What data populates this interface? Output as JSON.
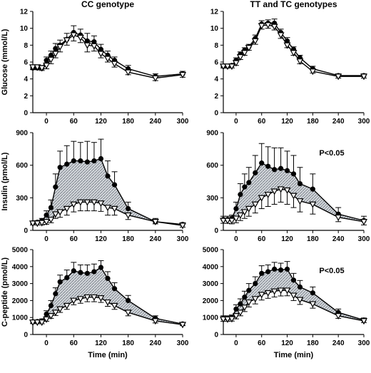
{
  "chart_data": [
    {
      "type": "line",
      "title": "CC genotype",
      "ylabel": "Glucose (mmol/L)",
      "xlabel": "",
      "ylim": [
        0,
        12
      ],
      "yticks": [
        0,
        2,
        4,
        6,
        8,
        10,
        12
      ],
      "xticks": [
        0,
        60,
        120,
        180,
        240,
        300
      ],
      "xlim": [
        -30,
        300
      ],
      "p_value": "",
      "shaded": false,
      "x": [
        -30,
        -20,
        -10,
        0,
        10,
        20,
        30,
        45,
        60,
        75,
        90,
        105,
        120,
        135,
        150,
        180,
        240,
        300
      ],
      "series": [
        {
          "marker": "circle",
          "values": [
            5.3,
            5.3,
            5.3,
            6.2,
            6.8,
            7.6,
            8.0,
            8.7,
            9.5,
            9.2,
            8.5,
            8.4,
            7.5,
            6.8,
            6.2,
            5.2,
            4.3,
            4.6
          ],
          "err": [
            0.3,
            0.3,
            0.3,
            0.4,
            0.5,
            0.6,
            0.6,
            0.7,
            0.8,
            0.7,
            0.9,
            0.7,
            0.6,
            0.5,
            0.4,
            0.4,
            0.3,
            0.3
          ]
        },
        {
          "marker": "triangle",
          "values": [
            5.4,
            5.4,
            5.3,
            5.6,
            6.3,
            7.0,
            7.8,
            8.6,
            9.2,
            8.9,
            8.0,
            7.9,
            7.0,
            6.4,
            5.8,
            4.8,
            4.1,
            4.5
          ],
          "err": [
            0.3,
            0.3,
            0.3,
            0.4,
            0.5,
            0.5,
            0.6,
            0.6,
            0.7,
            0.6,
            0.8,
            0.6,
            0.5,
            0.4,
            0.4,
            0.3,
            0.3,
            0.3
          ]
        }
      ]
    },
    {
      "type": "line",
      "title": "TT and TC genotypes",
      "ylabel": "",
      "xlabel": "",
      "ylim": [
        0,
        12
      ],
      "yticks": [
        0,
        2,
        4,
        6,
        8,
        10,
        12
      ],
      "xticks": [
        0,
        60,
        120,
        180,
        240,
        300
      ],
      "xlim": [
        -30,
        300
      ],
      "p_value": "",
      "shaded": false,
      "x": [
        -30,
        -20,
        -10,
        0,
        10,
        20,
        30,
        45,
        60,
        75,
        90,
        105,
        120,
        135,
        150,
        180,
        240,
        300
      ],
      "series": [
        {
          "marker": "circle",
          "values": [
            5.5,
            5.5,
            5.6,
            6.2,
            6.9,
            7.4,
            7.8,
            8.8,
            10.5,
            10.6,
            10.6,
            9.5,
            8.5,
            7.5,
            6.5,
            5.2,
            4.4,
            4.4
          ],
          "err": [
            0.2,
            0.2,
            0.2,
            0.3,
            0.3,
            0.3,
            0.3,
            0.4,
            0.4,
            0.4,
            0.5,
            0.4,
            0.4,
            0.3,
            0.3,
            0.3,
            0.2,
            0.2
          ]
        },
        {
          "marker": "triangle",
          "values": [
            5.5,
            5.5,
            5.5,
            5.9,
            6.6,
            7.1,
            7.7,
            8.5,
            10.3,
            10.4,
            10.2,
            9.2,
            8.0,
            7.1,
            6.1,
            4.9,
            4.3,
            4.3
          ],
          "err": [
            0.2,
            0.2,
            0.2,
            0.3,
            0.3,
            0.3,
            0.3,
            0.4,
            0.4,
            0.4,
            0.4,
            0.4,
            0.3,
            0.3,
            0.3,
            0.2,
            0.2,
            0.2
          ]
        }
      ]
    },
    {
      "type": "line",
      "title": "",
      "ylabel": "Insulin (pmol/L)",
      "xlabel": "",
      "ylim": [
        0,
        900
      ],
      "yticks": [
        0,
        300,
        600,
        900
      ],
      "xticks": [
        0,
        60,
        120,
        180,
        240,
        300
      ],
      "xlim": [
        -30,
        300
      ],
      "p_value": "",
      "shaded": true,
      "x": [
        -30,
        -20,
        -10,
        0,
        10,
        20,
        30,
        45,
        60,
        75,
        90,
        105,
        120,
        135,
        150,
        180,
        240,
        300
      ],
      "series": [
        {
          "marker": "circle",
          "values": [
            70,
            75,
            90,
            140,
            210,
            400,
            580,
            610,
            640,
            640,
            630,
            640,
            660,
            500,
            420,
            200,
            80,
            55
          ],
          "err": [
            15,
            15,
            20,
            40,
            70,
            120,
            150,
            170,
            180,
            170,
            190,
            170,
            180,
            140,
            120,
            60,
            30,
            15
          ]
        },
        {
          "marker": "triangle",
          "values": [
            65,
            65,
            70,
            80,
            100,
            150,
            170,
            200,
            240,
            260,
            260,
            260,
            250,
            210,
            200,
            140,
            80,
            45
          ],
          "err": [
            15,
            15,
            20,
            25,
            30,
            40,
            50,
            60,
            70,
            80,
            80,
            80,
            75,
            70,
            60,
            40,
            20,
            15
          ]
        }
      ]
    },
    {
      "type": "line",
      "title": "",
      "ylabel": "",
      "xlabel": "",
      "ylim": [
        0,
        900
      ],
      "yticks": [
        0,
        300,
        600,
        900
      ],
      "xticks": [
        0,
        60,
        120,
        180,
        240,
        300
      ],
      "xlim": [
        -30,
        300
      ],
      "p_value": "P<0.05",
      "shaded": true,
      "x": [
        -30,
        -20,
        -10,
        0,
        10,
        20,
        30,
        45,
        60,
        75,
        90,
        105,
        120,
        135,
        150,
        180,
        240,
        300
      ],
      "series": [
        {
          "marker": "circle",
          "values": [
            100,
            100,
            110,
            200,
            330,
            400,
            440,
            530,
            620,
            590,
            560,
            570,
            550,
            520,
            430,
            380,
            150,
            90
          ],
          "err": [
            30,
            30,
            30,
            60,
            100,
            120,
            140,
            160,
            180,
            180,
            200,
            190,
            180,
            170,
            150,
            140,
            60,
            40
          ]
        },
        {
          "marker": "triangle",
          "values": [
            90,
            90,
            90,
            110,
            140,
            170,
            200,
            240,
            300,
            330,
            360,
            380,
            370,
            320,
            270,
            240,
            120,
            80
          ],
          "err": [
            25,
            25,
            30,
            40,
            50,
            60,
            70,
            80,
            100,
            110,
            120,
            120,
            130,
            110,
            100,
            90,
            40,
            30
          ]
        }
      ]
    },
    {
      "type": "line",
      "title": "",
      "ylabel": "C-peptide (pmol/L)",
      "xlabel": "Time (min)",
      "ylim": [
        0,
        5000
      ],
      "yticks": [
        0,
        1000,
        2000,
        3000,
        4000,
        5000
      ],
      "xticks": [
        0,
        60,
        120,
        180,
        240,
        300
      ],
      "xlim": [
        -30,
        300
      ],
      "p_value": "",
      "shaded": true,
      "x": [
        -30,
        -20,
        -10,
        0,
        10,
        20,
        30,
        45,
        60,
        75,
        90,
        105,
        120,
        135,
        150,
        180,
        240,
        300
      ],
      "series": [
        {
          "marker": "circle",
          "values": [
            750,
            760,
            800,
            1200,
            1700,
            2400,
            3100,
            3350,
            3750,
            3650,
            3600,
            3700,
            3950,
            3300,
            2700,
            2000,
            950,
            620
          ],
          "err": [
            100,
            100,
            120,
            200,
            300,
            350,
            400,
            450,
            500,
            450,
            500,
            450,
            400,
            400,
            350,
            300,
            150,
            80
          ]
        },
        {
          "marker": "triangle",
          "values": [
            720,
            720,
            720,
            900,
            1100,
            1300,
            1500,
            1700,
            2000,
            2100,
            2200,
            2200,
            2150,
            1900,
            1700,
            1300,
            800,
            580
          ],
          "err": [
            80,
            80,
            90,
            120,
            150,
            180,
            200,
            220,
            250,
            260,
            270,
            270,
            260,
            240,
            220,
            200,
            120,
            60
          ]
        }
      ]
    },
    {
      "type": "line",
      "title": "",
      "ylabel": "",
      "xlabel": "Time (min)",
      "ylim": [
        0,
        5000
      ],
      "yticks": [
        0,
        1000,
        2000,
        3000,
        4000,
        5000
      ],
      "xticks": [
        0,
        60,
        120,
        180,
        240,
        300
      ],
      "xlim": [
        -30,
        300
      ],
      "p_value": "P<0.05",
      "shaded": true,
      "x": [
        -30,
        -20,
        -10,
        0,
        10,
        20,
        30,
        45,
        60,
        75,
        90,
        105,
        120,
        135,
        150,
        180,
        240,
        300
      ],
      "series": [
        {
          "marker": "circle",
          "values": [
            950,
            950,
            1000,
            1500,
            1800,
            2200,
            2600,
            3000,
            3600,
            3700,
            3850,
            3800,
            3850,
            3200,
            2800,
            2450,
            1300,
            850
          ],
          "err": [
            150,
            150,
            150,
            250,
            300,
            350,
            400,
            400,
            450,
            400,
            400,
            400,
            450,
            400,
            380,
            350,
            200,
            120
          ]
        },
        {
          "marker": "triangle",
          "values": [
            900,
            900,
            920,
            1100,
            1300,
            1600,
            1900,
            2100,
            2350,
            2450,
            2550,
            2600,
            2600,
            2300,
            2050,
            1800,
            1100,
            800
          ],
          "err": [
            120,
            120,
            130,
            180,
            200,
            250,
            280,
            300,
            320,
            320,
            340,
            330,
            320,
            300,
            280,
            250,
            150,
            100
          ]
        }
      ]
    }
  ]
}
